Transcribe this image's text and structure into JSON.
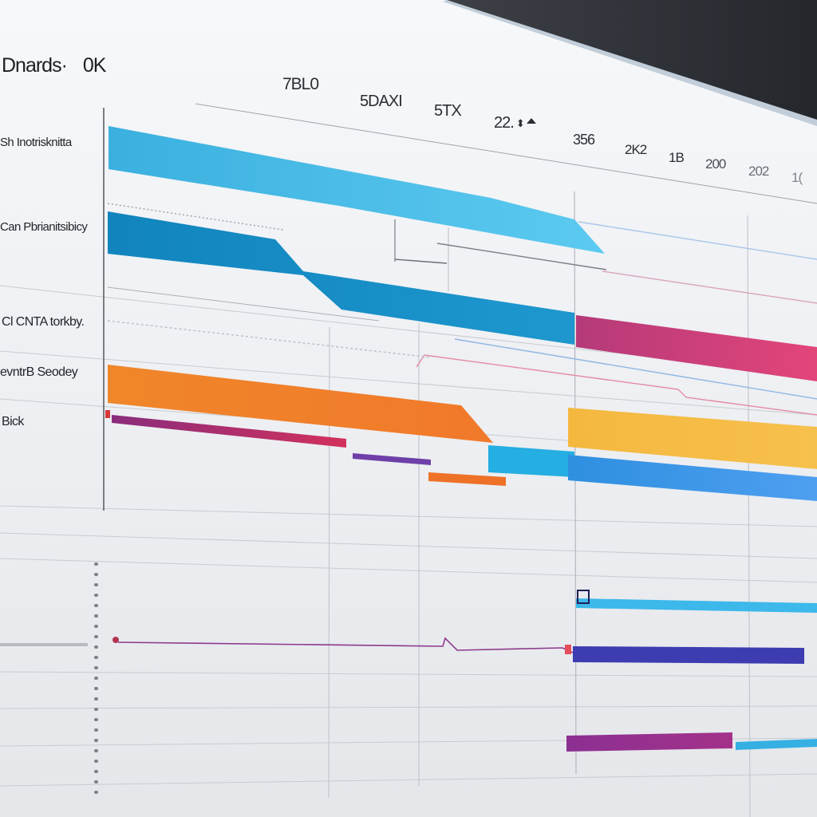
{
  "window": {
    "title": "Dnards·",
    "zoom": "0K"
  },
  "columns": [
    {
      "label": "7BL0"
    },
    {
      "label": "5DAXI"
    },
    {
      "label": "5TX"
    },
    {
      "label": "22.",
      "icon": "sort-icon"
    },
    {
      "label": "356"
    },
    {
      "label": "2K2"
    },
    {
      "label": "1B"
    },
    {
      "label": "200"
    },
    {
      "label": "202"
    },
    {
      "label": "1("
    }
  ],
  "rows": [
    {
      "label": "Sh Inotrisknitta"
    },
    {
      "label": "Can Pbrianitsibicy"
    },
    {
      "label": "Cl CNTA torkby."
    },
    {
      "label": "evntrB Seodey"
    },
    {
      "label": "Bick"
    }
  ],
  "bars": [
    {
      "name": "bar-blue-1",
      "color": "#3fb2e0"
    },
    {
      "name": "bar-blue-2",
      "color": "#1589c2"
    },
    {
      "name": "bar-magenta",
      "color": "#d0356f"
    },
    {
      "name": "bar-orange",
      "color": "#f08a2a"
    },
    {
      "name": "bar-yellow",
      "color": "#f4b944"
    },
    {
      "name": "bar-cyan",
      "color": "#31ace0"
    },
    {
      "name": "bar-azure",
      "color": "#3f8fe6"
    },
    {
      "name": "bar-crimson-thin",
      "color": "#b42b63"
    },
    {
      "name": "bar-purple-thin",
      "color": "#7b3fb0"
    },
    {
      "name": "bar-orange-thin",
      "color": "#ee7a29"
    },
    {
      "name": "bar-cyan-thin",
      "color": "#3cb8ea"
    },
    {
      "name": "bar-indigo",
      "color": "#3f3fb4"
    },
    {
      "name": "bar-violet",
      "color": "#9a2d8e"
    },
    {
      "name": "bar-cyan-thin-2",
      "color": "#36b0e3"
    }
  ]
}
